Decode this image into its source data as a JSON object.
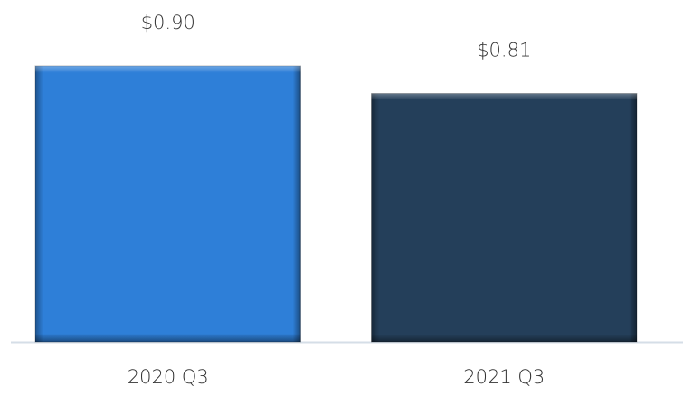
{
  "chart_data": {
    "type": "bar",
    "categories": [
      "2020 Q3",
      "2021 Q3"
    ],
    "values": [
      0.9,
      0.81
    ],
    "value_labels": [
      "$0.90",
      "$0.81"
    ],
    "colors": [
      "#2e7fd8",
      "#243f5a"
    ]
  }
}
